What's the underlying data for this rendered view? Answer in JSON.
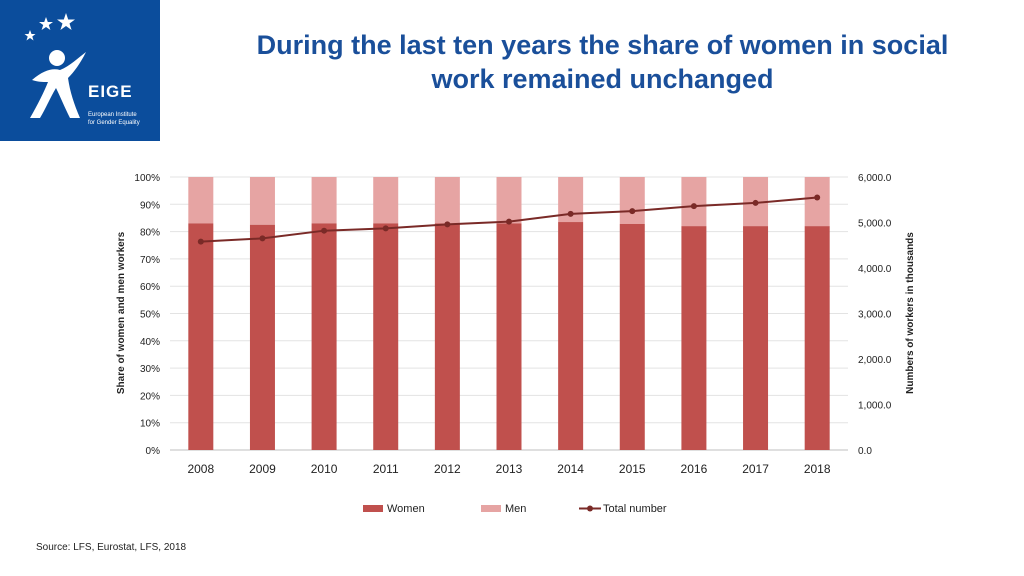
{
  "logo": {
    "name": "EIGE",
    "subtitle_line1": "European Institute",
    "subtitle_line2": "for Gender Equality"
  },
  "title": "During the last ten years the share of women in social work remained unchanged",
  "source": "Source: LFS, Eurostat, LFS, 2018",
  "colors": {
    "women": "#c0504d",
    "men": "#e6a4a3",
    "total": "#7a2a27",
    "title": "#1a4f9a",
    "logo_bg": "#0b4d9c"
  },
  "chart_data": {
    "type": "bar",
    "stacked": true,
    "percent_stacked": true,
    "categories": [
      "2008",
      "2009",
      "2010",
      "2011",
      "2012",
      "2013",
      "2014",
      "2015",
      "2016",
      "2017",
      "2018"
    ],
    "series": [
      {
        "name": "Women",
        "axis": "left",
        "values": [
          83,
          82.5,
          83,
          83,
          83,
          83,
          83.5,
          82.8,
          82,
          82,
          82
        ]
      },
      {
        "name": "Men",
        "axis": "left",
        "values": [
          17,
          17.5,
          17,
          17,
          17,
          17,
          16.5,
          17.2,
          18,
          18,
          18
        ]
      },
      {
        "name": "Total number",
        "type": "line",
        "axis": "right",
        "values": [
          4580,
          4650,
          4820,
          4870,
          4960,
          5020,
          5190,
          5250,
          5360,
          5430,
          5550
        ]
      }
    ],
    "ylabel": "Share of women and men workers",
    "y2label": "Numbers of workers in thousands",
    "ylim": [
      0,
      100
    ],
    "y2lim": [
      0,
      6000
    ],
    "y_ticks": [
      "0%",
      "10%",
      "20%",
      "30%",
      "40%",
      "50%",
      "60%",
      "70%",
      "80%",
      "90%",
      "100%"
    ],
    "y2_ticks": [
      "0.0",
      "1,000.0",
      "2,000.0",
      "3,000.0",
      "4,000.0",
      "5,000.0",
      "6,000.0"
    ],
    "legend": [
      "Women",
      "Men",
      "Total number"
    ],
    "legend_position": "bottom",
    "grid": true
  }
}
